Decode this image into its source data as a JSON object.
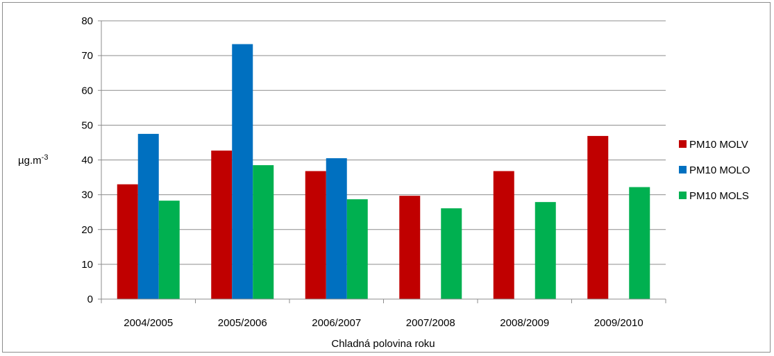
{
  "chart_data": {
    "type": "bar",
    "title": "",
    "xlabel": "Chladná polovina roku",
    "ylabel": "µg.m-3",
    "ylabel_base": "µg.m",
    "ylabel_sup": "-3",
    "ylim": [
      0,
      80
    ],
    "yticks": [
      0,
      10,
      20,
      30,
      40,
      50,
      60,
      70,
      80
    ],
    "grid": true,
    "legend_position": "right",
    "categories": [
      "2004/2005",
      "2005/2006",
      "2006/2007",
      "2007/2008",
      "2008/2009",
      "2009/2010"
    ],
    "series": [
      {
        "name": "PM10 MOLV",
        "color": "#C00000",
        "values": [
          33.0,
          42.7,
          36.8,
          29.7,
          36.8,
          46.9
        ]
      },
      {
        "name": "PM10 MOLO",
        "color": "#0070C0",
        "values": [
          47.5,
          73.3,
          40.5,
          null,
          null,
          null
        ]
      },
      {
        "name": "PM10 MOLS",
        "color": "#00B050",
        "values": [
          28.3,
          38.5,
          28.7,
          26.1,
          27.9,
          32.2
        ]
      }
    ]
  }
}
